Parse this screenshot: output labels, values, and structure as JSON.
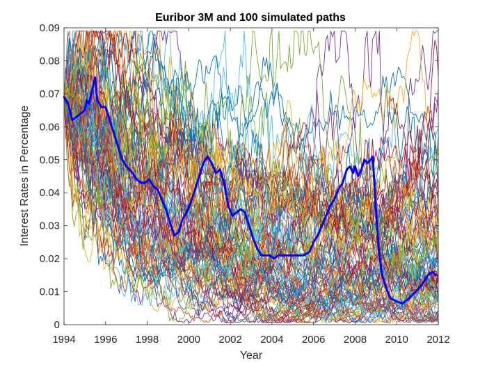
{
  "chart_data": {
    "type": "line",
    "title": "Euribor 3M and 100 simulated paths",
    "xlabel": "Year",
    "ylabel": "Interest Rates in Percentage",
    "xlim": [
      1994,
      2012
    ],
    "ylim": [
      0,
      0.09
    ],
    "xticks": [
      1994,
      1996,
      1998,
      2000,
      2002,
      2004,
      2006,
      2008,
      2010,
      2012
    ],
    "yticks": [
      0,
      0.01,
      0.02,
      0.03,
      0.04,
      0.05,
      0.06,
      0.07,
      0.08,
      0.09
    ],
    "xtick_labels": [
      "1994",
      "1996",
      "1998",
      "2000",
      "2002",
      "2004",
      "2006",
      "2008",
      "2010",
      "2012"
    ],
    "ytick_labels": [
      "0",
      "0.01",
      "0.02",
      "0.03",
      "0.04",
      "0.05",
      "0.06",
      "0.07",
      "0.08",
      "0.09"
    ],
    "grid": false,
    "box": true,
    "series": [
      {
        "role": "observed",
        "color": "#0000ff",
        "x": [
          1994.0,
          1994.2,
          1994.4,
          1994.6,
          1994.8,
          1995.0,
          1995.1,
          1995.2,
          1995.35,
          1995.5,
          1995.6,
          1995.8,
          1996.0,
          1996.3,
          1996.6,
          1996.8,
          1997.0,
          1997.3,
          1997.5,
          1997.7,
          1997.9,
          1998.1,
          1998.3,
          1998.5,
          1998.7,
          1998.9,
          1999.1,
          1999.3,
          1999.5,
          1999.7,
          1999.9,
          2000.1,
          2000.3,
          2000.5,
          2000.7,
          2000.9,
          2001.1,
          2001.3,
          2001.5,
          2001.7,
          2001.9,
          2002.1,
          2002.3,
          2002.5,
          2002.7,
          2002.9,
          2003.1,
          2003.3,
          2003.5,
          2003.7,
          2003.9,
          2004.1,
          2004.3,
          2004.6,
          2004.9,
          2005.2,
          2005.5,
          2005.8,
          2006.0,
          2006.2,
          2006.4,
          2006.6,
          2006.8,
          2007.0,
          2007.2,
          2007.4,
          2007.6,
          2007.75,
          2007.9,
          2008.0,
          2008.15,
          2008.3,
          2008.45,
          2008.6,
          2008.75,
          2008.85,
          2009.0,
          2009.15,
          2009.3,
          2009.5,
          2009.7,
          2010.0,
          2010.3,
          2010.6,
          2010.9,
          2011.2,
          2011.5,
          2011.7,
          2011.9
        ],
        "values": [
          0.069,
          0.067,
          0.062,
          0.063,
          0.064,
          0.065,
          0.068,
          0.067,
          0.071,
          0.075,
          0.068,
          0.066,
          0.066,
          0.06,
          0.054,
          0.05,
          0.048,
          0.046,
          0.044,
          0.043,
          0.043,
          0.044,
          0.042,
          0.041,
          0.038,
          0.035,
          0.031,
          0.027,
          0.028,
          0.032,
          0.034,
          0.037,
          0.041,
          0.045,
          0.049,
          0.051,
          0.049,
          0.046,
          0.047,
          0.043,
          0.036,
          0.033,
          0.034,
          0.035,
          0.034,
          0.03,
          0.026,
          0.023,
          0.021,
          0.021,
          0.021,
          0.02,
          0.021,
          0.021,
          0.021,
          0.021,
          0.021,
          0.022,
          0.025,
          0.027,
          0.03,
          0.033,
          0.036,
          0.038,
          0.041,
          0.043,
          0.047,
          0.048,
          0.046,
          0.048,
          0.045,
          0.047,
          0.05,
          0.049,
          0.05,
          0.051,
          0.035,
          0.022,
          0.015,
          0.011,
          0.008,
          0.007,
          0.0065,
          0.008,
          0.01,
          0.012,
          0.015,
          0.016,
          0.015
        ]
      }
    ],
    "simulated_paths": {
      "count": 100,
      "start_value": 0.069,
      "palette": [
        "#0072bd",
        "#d95319",
        "#edb120",
        "#7e2f8e",
        "#77ac30",
        "#4dbeee",
        "#a2142f"
      ],
      "mean_start": 0.069,
      "mean_end": 0.016
    }
  }
}
